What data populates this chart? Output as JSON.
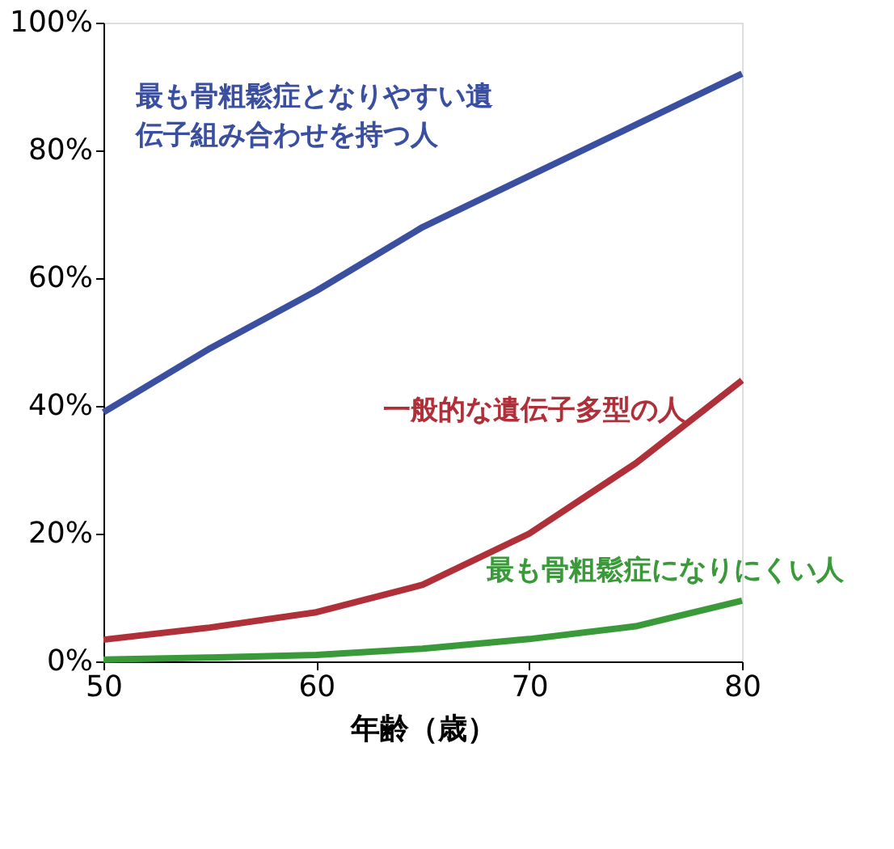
{
  "chart_data": {
    "type": "line",
    "xlabel": "年齢（歳）",
    "x": [
      50,
      55,
      60,
      65,
      70,
      75,
      80
    ],
    "series": [
      {
        "name": "最も骨粗鬆症となりやすい遺伝子組み合わせを持つ人",
        "color": "#3a4fa0",
        "values": [
          39,
          49,
          58,
          68,
          76,
          84,
          92
        ]
      },
      {
        "name": "一般的な遺伝子多型の人",
        "color": "#b0303a",
        "values": [
          3.4,
          5.3,
          7.7,
          12,
          20,
          31,
          44
        ]
      },
      {
        "name": "最も骨粗鬆症になりにくい人",
        "color": "#3a9a3a",
        "values": [
          0.3,
          0.6,
          1,
          2,
          3.5,
          5.5,
          9.5
        ]
      }
    ],
    "xlim": [
      50,
      80
    ],
    "xticks": [
      50,
      60,
      70,
      80
    ],
    "ylim": [
      0,
      100
    ],
    "yticks": [
      {
        "value": 0,
        "label": "0%"
      },
      {
        "value": 20,
        "label": "20%"
      },
      {
        "value": 40,
        "label": "40%"
      },
      {
        "value": 60,
        "label": "60%"
      },
      {
        "value": 80,
        "label": "80%"
      },
      {
        "value": 100,
        "label": "100%"
      }
    ],
    "grid": false,
    "legend": false,
    "marker": "none",
    "line_style": "solid"
  }
}
